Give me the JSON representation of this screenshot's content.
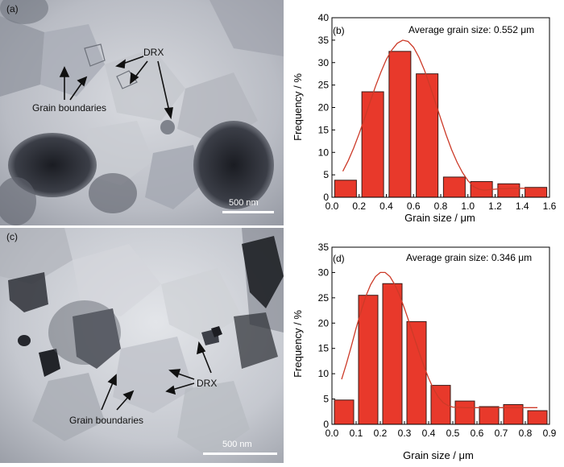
{
  "micrographs": [
    {
      "panel_label": "(a)",
      "scale_bar": "500 nm",
      "annotations": {
        "drx": "DRX",
        "grain_boundaries": "Grain boundaries"
      }
    },
    {
      "panel_label": "(c)",
      "scale_bar": "500 nm",
      "annotations": {
        "drx": "DRX",
        "grain_boundaries": "Grain boundaries"
      }
    }
  ],
  "chart_data": [
    {
      "type": "bar",
      "panel_label": "(b)",
      "annotation": "Average grain size: 0.552 μm",
      "xlabel": "Grain size / μm",
      "ylabel": "Frequency / %",
      "xlim": [
        0.0,
        1.6
      ],
      "ylim": [
        0,
        40
      ],
      "xticks": [
        "0.0",
        "0.2",
        "0.4",
        "0.6",
        "0.8",
        "1.0",
        "1.2",
        "1.4",
        "1.6"
      ],
      "yticks": [
        "0",
        "5",
        "10",
        "15",
        "20",
        "25",
        "30",
        "35",
        "40"
      ],
      "x": [
        0.1,
        0.3,
        0.5,
        0.7,
        0.9,
        1.1,
        1.3,
        1.5
      ],
      "values": [
        3.8,
        23.5,
        32.5,
        27.5,
        4.5,
        3.5,
        3.0,
        2.2
      ],
      "bar_width": 0.16,
      "fit_curve": {
        "type": "gaussian",
        "x": [
          0.08,
          0.12,
          0.16,
          0.2,
          0.24,
          0.28,
          0.32,
          0.36,
          0.4,
          0.44,
          0.48,
          0.52,
          0.56,
          0.6,
          0.64,
          0.68,
          0.72,
          0.76,
          0.8,
          0.84,
          0.88,
          0.92,
          0.96,
          1.0,
          1.04,
          1.08,
          1.12,
          1.16,
          1.2,
          1.24,
          1.28,
          1.32,
          1.36,
          1.4,
          1.44,
          1.48,
          1.52
        ],
        "y": [
          5.8,
          8.2,
          11.0,
          14.2,
          17.6,
          21.2,
          24.7,
          27.9,
          30.7,
          32.8,
          34.3,
          35.0,
          34.7,
          33.4,
          31.2,
          28.3,
          24.9,
          21.2,
          17.5,
          13.9,
          10.6,
          7.8,
          5.5,
          3.7,
          2.4,
          1.8,
          1.6,
          1.7,
          1.8,
          1.9,
          1.9,
          2.0,
          2.0,
          2.0,
          2.0,
          2.0,
          2.0
        ]
      },
      "colors": {
        "bar_fill": "#e8392b",
        "bar_stroke": "#3a1a16",
        "curve": "#cc3a28"
      }
    },
    {
      "type": "bar",
      "panel_label": "(d)",
      "annotation": "Average grain size: 0.346 μm",
      "xlabel": "Grain size / μm",
      "ylabel": "Frequency / %",
      "xlim": [
        0.0,
        0.9
      ],
      "ylim": [
        0,
        35
      ],
      "xticks": [
        "0.0",
        "0.1",
        "0.2",
        "0.3",
        "0.4",
        "0.5",
        "0.6",
        "0.7",
        "0.8",
        "0.9"
      ],
      "yticks": [
        "0",
        "5",
        "10",
        "15",
        "20",
        "25",
        "30",
        "35"
      ],
      "x": [
        0.05,
        0.15,
        0.25,
        0.35,
        0.45,
        0.55,
        0.65,
        0.75,
        0.85
      ],
      "values": [
        4.8,
        25.5,
        27.8,
        20.3,
        7.7,
        4.6,
        3.5,
        3.9,
        2.7
      ],
      "bar_width": 0.08,
      "fit_curve": {
        "type": "gaussian",
        "x": [
          0.04,
          0.06,
          0.08,
          0.1,
          0.12,
          0.14,
          0.16,
          0.18,
          0.2,
          0.22,
          0.24,
          0.26,
          0.28,
          0.3,
          0.32,
          0.34,
          0.36,
          0.38,
          0.4,
          0.42,
          0.44,
          0.46,
          0.48,
          0.5,
          0.55,
          0.6,
          0.65,
          0.7,
          0.75,
          0.8,
          0.85
        ],
        "y": [
          8.9,
          12.0,
          15.4,
          19.0,
          22.3,
          25.3,
          27.6,
          29.2,
          30.0,
          30.0,
          29.2,
          27.6,
          25.5,
          22.9,
          20.1,
          17.2,
          14.3,
          11.6,
          9.1,
          7.0,
          5.4,
          4.3,
          3.7,
          3.4,
          3.3,
          3.3,
          3.3,
          3.3,
          3.3,
          3.3,
          3.3
        ]
      },
      "colors": {
        "bar_fill": "#e8392b",
        "bar_stroke": "#3a1a16",
        "curve": "#cc3a28"
      }
    }
  ]
}
